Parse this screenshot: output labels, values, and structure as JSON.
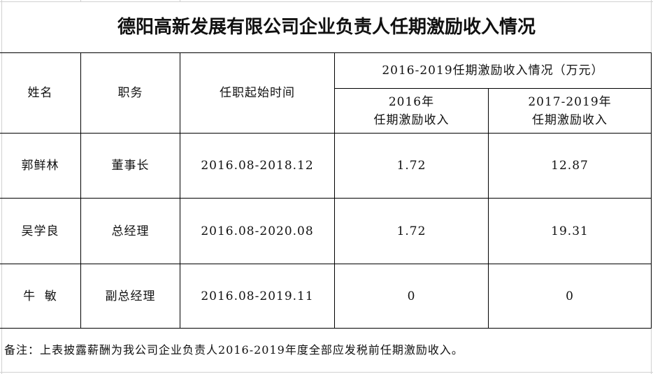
{
  "title": "德阳高新发展有限公司企业负责人任期激励收入情况",
  "headers": {
    "name": "姓名",
    "position": "职务",
    "term": "任职起始时间",
    "group": "2016-2019任期激励收入情况（万元）",
    "col2016": "2016年\n任期激励收入",
    "col2017_2019": "2017-2019年\n任期激励收入"
  },
  "rows": [
    {
      "name": "郭鲜林",
      "position": "董事长",
      "term": "2016.08-2018.12",
      "y2016": "1.72",
      "y2017_2019": "12.87"
    },
    {
      "name": "吴学良",
      "position": "总经理",
      "term": "2016.08-2020.08",
      "y2016": "1.72",
      "y2017_2019": "19.31"
    },
    {
      "name": "牛  敏",
      "position": "副总经理",
      "term": "2016.08-2019.11",
      "y2016": "0",
      "y2017_2019": "0"
    }
  ],
  "note": "备注：上表披露薪酬为我公司企业负责人2016-2019年度全部应发税前任期激励收入。"
}
